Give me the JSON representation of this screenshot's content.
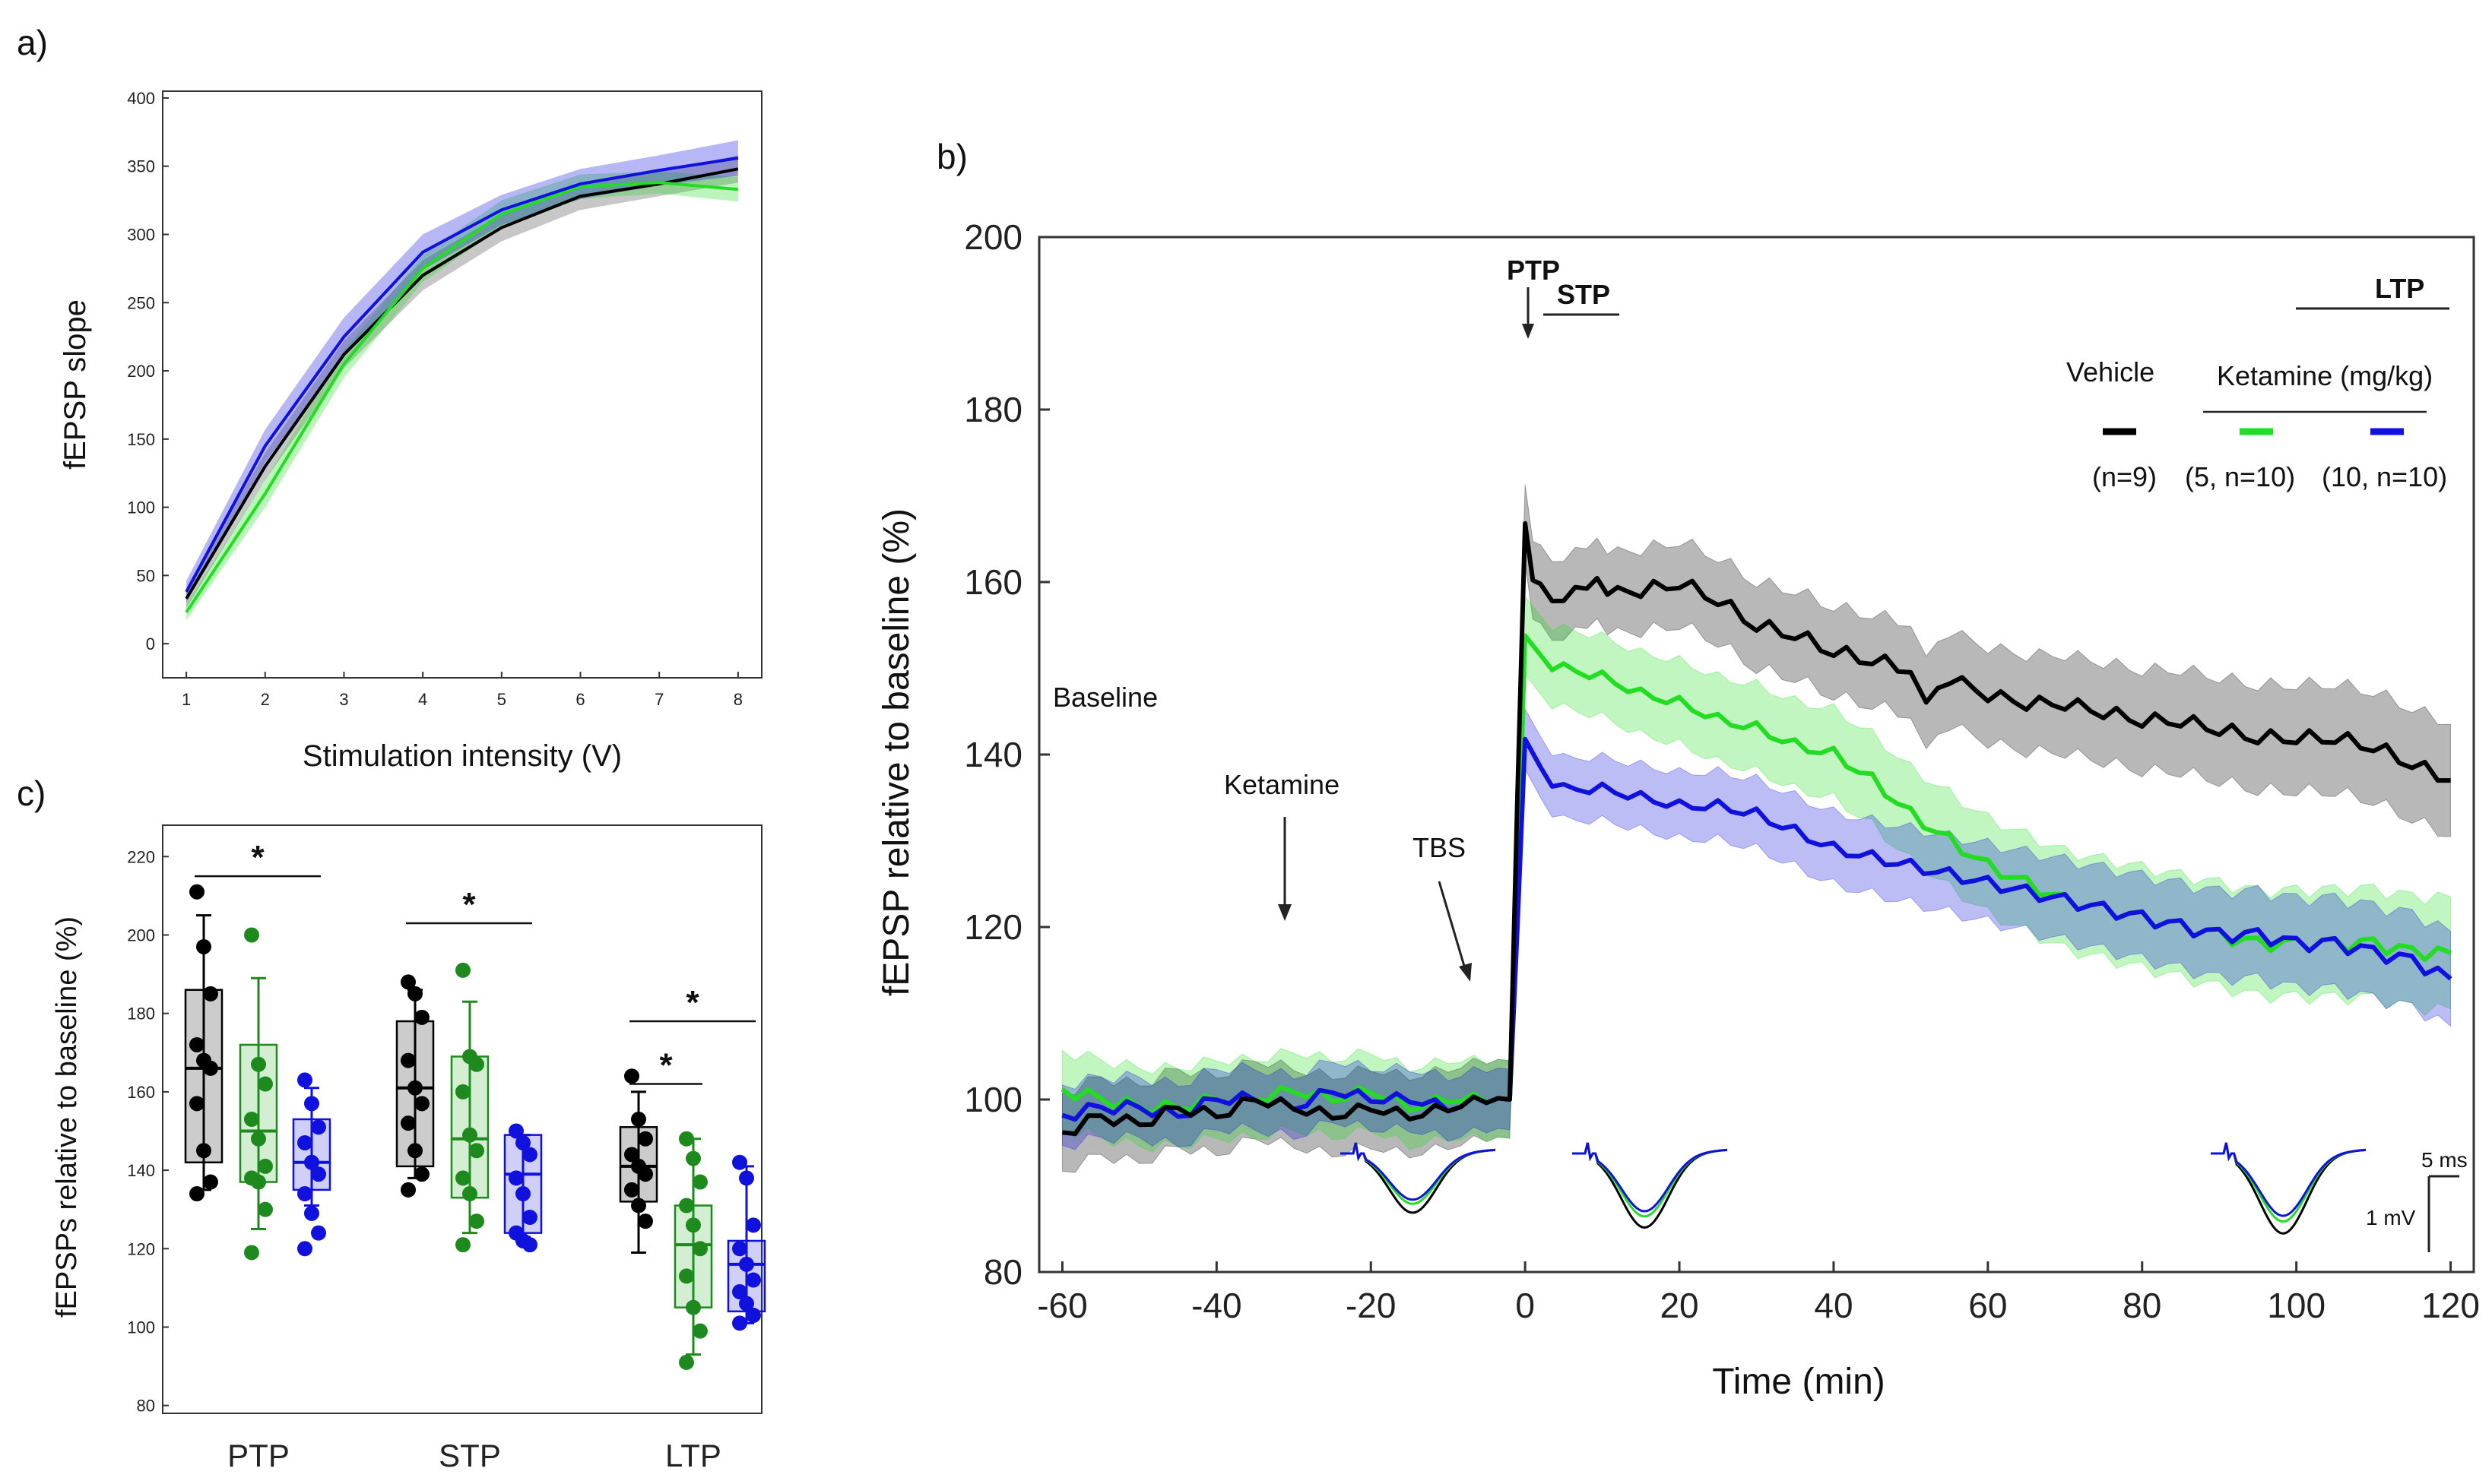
{
  "panel_labels": {
    "a": "a)",
    "b": "b)",
    "c": "c)"
  },
  "colors": {
    "vehicle": "#000000",
    "ket5": "#22dd22",
    "ket10": "#1111dd",
    "ket5_box": "#1e8a1e"
  },
  "chart_data": [
    {
      "id": "a",
      "type": "line",
      "title": "",
      "xlabel": "Stimulation intensity (V)",
      "ylabel": "fEPSP slope",
      "xlim": [
        0.7,
        8.3
      ],
      "ylim": [
        -25,
        405
      ],
      "xticks": [
        1,
        2,
        3,
        4,
        5,
        6,
        7,
        8
      ],
      "yticks": [
        0,
        50,
        100,
        150,
        200,
        250,
        300,
        350,
        400
      ],
      "x": [
        1,
        2,
        3,
        4,
        5,
        6,
        7,
        8
      ],
      "series": [
        {
          "name": "Vehicle",
          "color": "#000000",
          "values": [
            33,
            130,
            212,
            270,
            305,
            328,
            337,
            348
          ],
          "err": [
            7,
            10,
            10,
            11,
            10,
            10,
            9,
            10
          ]
        },
        {
          "name": "Ketamine 5",
          "color": "#22dd22",
          "values": [
            23,
            110,
            205,
            275,
            315,
            335,
            338,
            333
          ],
          "err": [
            6,
            10,
            10,
            10,
            10,
            9,
            8,
            9
          ]
        },
        {
          "name": "Ketamine 10",
          "color": "#1111dd",
          "values": [
            38,
            145,
            225,
            287,
            318,
            337,
            347,
            356
          ],
          "err": [
            8,
            12,
            14,
            13,
            11,
            11,
            11,
            13
          ]
        }
      ]
    },
    {
      "id": "b",
      "type": "line",
      "title": "",
      "xlabel": "Time (min)",
      "ylabel": "fEPSP relative to baseline (%)",
      "xlim": [
        -63,
        123
      ],
      "ylim": [
        80,
        200
      ],
      "xticks": [
        -60,
        -40,
        -20,
        0,
        20,
        40,
        60,
        80,
        100,
        120
      ],
      "yticks": [
        80,
        100,
        120,
        140,
        160,
        180,
        200
      ],
      "series": [
        {
          "name": "Vehicle",
          "color": "#000000",
          "points": [
            [
              -60,
              96
            ],
            [
              -55,
              98
            ],
            [
              -50,
              97
            ],
            [
              -45,
              99
            ],
            [
              -40,
              98
            ],
            [
              -35,
              100
            ],
            [
              -30,
              99
            ],
            [
              -25,
              98
            ],
            [
              -20,
              99
            ],
            [
              -15,
              98
            ],
            [
              -10,
              99
            ],
            [
              -5,
              100
            ],
            [
              -2,
              100
            ],
            [
              -1,
              135
            ],
            [
              0,
              166
            ],
            [
              1,
              161
            ],
            [
              2,
              159
            ],
            [
              5,
              158
            ],
            [
              8,
              160
            ],
            [
              12,
              159
            ],
            [
              15,
              159
            ],
            [
              20,
              160
            ],
            [
              25,
              158
            ],
            [
              30,
              155
            ],
            [
              35,
              154
            ],
            [
              40,
              152
            ],
            [
              45,
              151
            ],
            [
              50,
              150
            ],
            [
              52,
              146
            ],
            [
              55,
              149
            ],
            [
              60,
              147
            ],
            [
              65,
              146
            ],
            [
              70,
              146
            ],
            [
              75,
              145
            ],
            [
              80,
              144
            ],
            [
              85,
              144
            ],
            [
              90,
              143
            ],
            [
              95,
              142
            ],
            [
              100,
              142
            ],
            [
              105,
              142
            ],
            [
              110,
              141
            ],
            [
              115,
              139
            ],
            [
              120,
              137
            ]
          ],
          "err": 4.5
        },
        {
          "name": "Ketamine 5",
          "color": "#22dd22",
          "points": [
            [
              -60,
              101
            ],
            [
              -55,
              100
            ],
            [
              -50,
              99
            ],
            [
              -45,
              99
            ],
            [
              -40,
              100
            ],
            [
              -35,
              100
            ],
            [
              -30,
              101
            ],
            [
              -25,
              100
            ],
            [
              -20,
              101
            ],
            [
              -15,
              99
            ],
            [
              -10,
              100
            ],
            [
              -5,
              100
            ],
            [
              -2,
              100
            ],
            [
              -1,
              125
            ],
            [
              0,
              153
            ],
            [
              2,
              151
            ],
            [
              5,
              150
            ],
            [
              10,
              149
            ],
            [
              15,
              147
            ],
            [
              20,
              146
            ],
            [
              25,
              144
            ],
            [
              30,
              143
            ],
            [
              35,
              141
            ],
            [
              40,
              140
            ],
            [
              45,
              137
            ],
            [
              50,
              133
            ],
            [
              55,
              130
            ],
            [
              60,
              127
            ],
            [
              65,
              125
            ],
            [
              70,
              123
            ],
            [
              75,
              122
            ],
            [
              80,
              121
            ],
            [
              85,
              120
            ],
            [
              90,
              119
            ],
            [
              95,
              118
            ],
            [
              100,
              118
            ],
            [
              105,
              118
            ],
            [
              110,
              118
            ],
            [
              115,
              117
            ],
            [
              120,
              117
            ]
          ],
          "err": 4.5
        },
        {
          "name": "Ketamine 10",
          "color": "#1111dd",
          "points": [
            [
              -60,
              98
            ],
            [
              -55,
              99
            ],
            [
              -50,
              99
            ],
            [
              -45,
              98
            ],
            [
              -40,
              100
            ],
            [
              -35,
              100
            ],
            [
              -30,
              99
            ],
            [
              -25,
              101
            ],
            [
              -20,
              100
            ],
            [
              -15,
              100
            ],
            [
              -10,
              99
            ],
            [
              -5,
              100
            ],
            [
              -2,
              100
            ],
            [
              -1,
              120
            ],
            [
              0,
              141
            ],
            [
              2,
              138
            ],
            [
              5,
              136
            ],
            [
              10,
              136
            ],
            [
              15,
              135
            ],
            [
              20,
              134
            ],
            [
              25,
              134
            ],
            [
              30,
              133
            ],
            [
              35,
              131
            ],
            [
              40,
              129
            ],
            [
              45,
              128
            ],
            [
              50,
              127
            ],
            [
              55,
              126
            ],
            [
              60,
              125
            ],
            [
              65,
              124
            ],
            [
              70,
              123
            ],
            [
              75,
              122
            ],
            [
              80,
              121
            ],
            [
              85,
              120
            ],
            [
              90,
              119
            ],
            [
              95,
              119
            ],
            [
              100,
              118
            ],
            [
              105,
              118
            ],
            [
              110,
              117
            ],
            [
              115,
              116
            ],
            [
              120,
              114
            ]
          ],
          "err": 3.5
        }
      ],
      "annotations": {
        "baseline": "Baseline",
        "ketamine": "Ketamine",
        "tbs": "TBS",
        "ptp": "PTP",
        "stp": "STP",
        "ltp": "LTP"
      },
      "legend": {
        "vehicle_label": "Vehicle",
        "ketamine_label": "Ketamine (mg/kg)",
        "vehicle_n": "(n=9)",
        "ket5_n": "(5, n=10)",
        "ket10_n": "(10, n=10)"
      },
      "scale_bar": {
        "time": "5 ms",
        "voltage": "1 mV"
      }
    },
    {
      "id": "c",
      "type": "box",
      "title": "",
      "xlabel": "",
      "ylabel": "fEPSPs relative to baseline (%)",
      "ylim": [
        78,
        228
      ],
      "yticks": [
        80,
        100,
        120,
        140,
        160,
        180,
        200,
        220
      ],
      "categories": [
        "PTP",
        "STP",
        "LTP"
      ],
      "groups": [
        {
          "category": "PTP",
          "boxes": [
            {
              "name": "Vehicle",
              "min": 135,
              "q1": 142,
              "median": 166,
              "q3": 186,
              "max": 205,
              "points": [
                211,
                197,
                185,
                172,
                168,
                166,
                157,
                145,
                137,
                134
              ]
            },
            {
              "name": "Ketamine 5",
              "min": 125,
              "q1": 137,
              "median": 150,
              "q3": 172,
              "max": 189,
              "points": [
                200,
                167,
                162,
                153,
                148,
                141,
                138,
                137,
                130,
                119
              ]
            },
            {
              "name": "Ketamine 10",
              "min": 131,
              "q1": 135,
              "median": 142,
              "q3": 153,
              "max": 161,
              "points": [
                163,
                157,
                151,
                147,
                142,
                139,
                134,
                129,
                124,
                120
              ]
            }
          ]
        },
        {
          "category": "STP",
          "boxes": [
            {
              "name": "Vehicle",
              "min": 138,
              "q1": 141,
              "median": 161,
              "q3": 178,
              "max": 186,
              "points": [
                188,
                185,
                179,
                168,
                161,
                157,
                152,
                145,
                139,
                135
              ]
            },
            {
              "name": "Ketamine 5",
              "min": 124,
              "q1": 133,
              "median": 148,
              "q3": 169,
              "max": 183,
              "points": [
                191,
                169,
                167,
                160,
                149,
                145,
                138,
                134,
                127,
                121
              ]
            },
            {
              "name": "Ketamine 10",
              "min": 123,
              "q1": 124,
              "median": 139,
              "q3": 149,
              "max": 149,
              "points": [
                150,
                147,
                144,
                138,
                134,
                128,
                124,
                122,
                121
              ]
            }
          ]
        },
        {
          "category": "LTP",
          "boxes": [
            {
              "name": "Vehicle",
              "min": 119,
              "q1": 132,
              "median": 141,
              "q3": 151,
              "max": 160,
              "points": [
                164,
                153,
                148,
                144,
                141,
                139,
                135,
                131,
                127
              ]
            },
            {
              "name": "Ketamine 5",
              "min": 93,
              "q1": 105,
              "median": 121,
              "q3": 131,
              "max": 148,
              "points": [
                148,
                143,
                137,
                131,
                126,
                120,
                113,
                105,
                99,
                91
              ]
            },
            {
              "name": "Ketamine 10",
              "min": 101,
              "q1": 104,
              "median": 116,
              "q3": 122,
              "max": 141,
              "points": [
                142,
                138,
                126,
                120,
                116,
                112,
                109,
                106,
                103,
                101
              ]
            }
          ]
        }
      ],
      "significance": [
        {
          "label": "*",
          "category": "PTP",
          "from": 0,
          "to": 2,
          "y": 215
        },
        {
          "label": "*",
          "category": "STP",
          "from": 0,
          "to": 2,
          "y": 203
        },
        {
          "label": "*",
          "category": "LTP",
          "from": 0,
          "to": 1,
          "y": 162
        },
        {
          "label": "*",
          "category": "LTP",
          "from": 0,
          "to": 2,
          "y": 178
        }
      ]
    }
  ]
}
